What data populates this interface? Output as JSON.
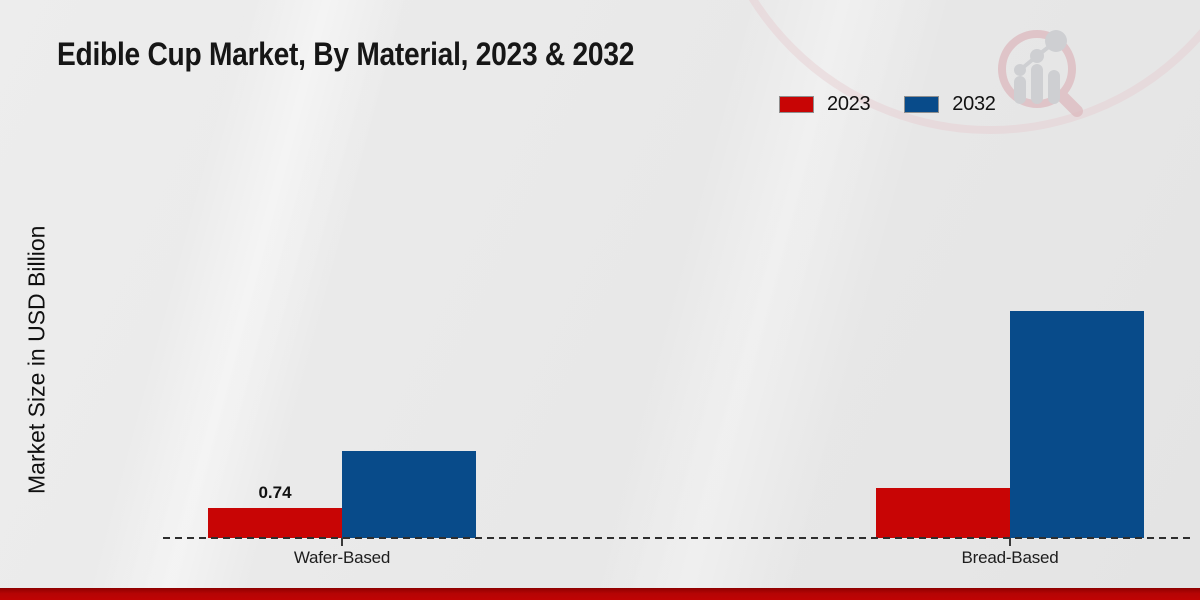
{
  "title": "Edible Cup Market, By Material, 2023 & 2032",
  "y_axis_label": "Market Size in USD Billion",
  "legend": {
    "items": [
      {
        "label": "2023",
        "color": "#c80505"
      },
      {
        "label": "2032",
        "color": "#084b8a"
      }
    ]
  },
  "watermark_icon": "market-research-future-logo",
  "colors": {
    "series_2023": "#c80505",
    "series_2032": "#084b8a",
    "bottom_strip": "#b50404",
    "baseline": "#2e2e2e",
    "background": "#e9e9e9"
  },
  "chart_data": {
    "type": "bar",
    "title": "Edible Cup Market, By Material, 2023 & 2032",
    "xlabel": "",
    "ylabel": "Market Size in USD Billion",
    "categories": [
      "Wafer-Based",
      "Bread-Based"
    ],
    "series": [
      {
        "name": "2023",
        "color": "#c80505",
        "values": [
          0.74,
          1.24
        ],
        "shown_labels": [
          "0.74",
          ""
        ]
      },
      {
        "name": "2032",
        "color": "#084b8a",
        "values": [
          2.15,
          5.6
        ],
        "shown_labels": [
          "",
          ""
        ]
      }
    ],
    "ylim": [
      0,
      9
    ],
    "grid": false,
    "y_axis_ticks_visible": false,
    "baseline_style": "dashed",
    "legend_position": "top-right"
  }
}
